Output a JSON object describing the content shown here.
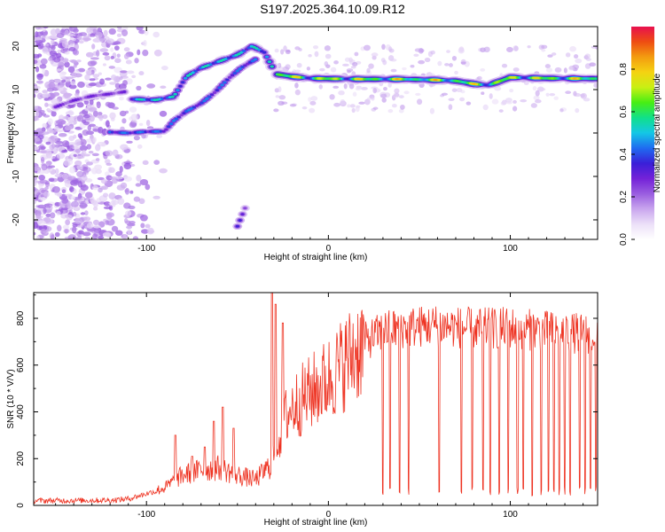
{
  "figure_title": "S197.2025.364.10.09.R12",
  "chart_data": [
    {
      "type": "heatmap",
      "name": "spectrogram",
      "xlabel": "Height of straight line (km)",
      "ylabel": "Frequency (Hz)",
      "xlim": [
        -162,
        148
      ],
      "ylim": [
        -24.5,
        24.5
      ],
      "xticks": [
        -100,
        0,
        100
      ],
      "yticks": [
        -20,
        -10,
        0,
        10,
        20
      ],
      "colorbar": {
        "label": "Normalized spectral amplitude",
        "range": [
          0,
          1
        ],
        "ticks": [
          0.0,
          0.2,
          0.4,
          0.6,
          0.8
        ],
        "tick_labels": [
          "0.0",
          "0.2",
          "0.4",
          "0.6",
          "0.8"
        ],
        "colormap": [
          "#ffffff",
          "#ece0f8",
          "#c9a6ee",
          "#9a5ee0",
          "#7422d8",
          "#3a1fd8",
          "#1f6bf0",
          "#14c7e6",
          "#10e08a",
          "#47ee14",
          "#c8f014",
          "#f5d212",
          "#f39c10",
          "#ee4d12",
          "#e8104e"
        ]
      },
      "ridges": [
        {
          "name": "main-tone",
          "points": [
            [
              -28,
              13.5
            ],
            [
              -20,
              13.0
            ],
            [
              -10,
              12.6
            ],
            [
              0,
              12.5
            ],
            [
              20,
              12.4
            ],
            [
              40,
              12.4
            ],
            [
              60,
              12.2
            ],
            [
              70,
              12.0
            ],
            [
              80,
              11.3
            ],
            [
              88,
              11.0
            ],
            [
              100,
              12.8
            ],
            [
              120,
              12.6
            ],
            [
              148,
              12.5
            ]
          ],
          "amplitude": 0.85
        },
        {
          "name": "left-tone-upper",
          "points": [
            [
              -108,
              7.8
            ],
            [
              -95,
              7.6
            ],
            [
              -85,
              8.4
            ],
            [
              -78,
              13.0
            ],
            [
              -70,
              15.0
            ],
            [
              -60,
              16.5
            ],
            [
              -50,
              18.0
            ],
            [
              -42,
              20.0
            ],
            [
              -35,
              18.5
            ],
            [
              -30,
              14.5
            ]
          ],
          "amplitude": 0.55
        },
        {
          "name": "left-tone-lower",
          "points": [
            [
              -120,
              0.2
            ],
            [
              -110,
              0.0
            ],
            [
              -100,
              0.3
            ],
            [
              -90,
              0.4
            ],
            [
              -85,
              2.8
            ],
            [
              -78,
              5.0
            ],
            [
              -70,
              6.8
            ],
            [
              -62,
              9.5
            ],
            [
              -55,
              12.5
            ],
            [
              -48,
              15.0
            ],
            [
              -40,
              17.0
            ]
          ],
          "amplitude": 0.45
        },
        {
          "name": "left-tone-middle",
          "points": [
            [
              -150,
              6.0
            ],
            [
              -140,
              7.5
            ],
            [
              -130,
              8.5
            ],
            [
              -120,
              9.0
            ],
            [
              -112,
              9.5
            ]
          ],
          "amplitude": 0.3
        },
        {
          "name": "isolated-blob",
          "points": [
            [
              -50,
              -21.5
            ],
            [
              -47,
              -18.5
            ],
            [
              -45,
              -16.5
            ]
          ],
          "amplitude": 0.35
        }
      ]
    },
    {
      "type": "line",
      "name": "snr",
      "xlabel": "Height of straight line (km)",
      "ylabel": "SNR (10 * V/V)",
      "xlim": [
        -162,
        148
      ],
      "ylim": [
        0,
        910
      ],
      "xticks": [
        -100,
        0,
        100
      ],
      "yticks": [
        0,
        200,
        400,
        600,
        800
      ],
      "color": "#ee3322",
      "series": [
        {
          "name": "SNR",
          "envelope": [
            [
              -162,
              20
            ],
            [
              -120,
              22
            ],
            [
              -110,
              28
            ],
            [
              -100,
              50
            ],
            [
              -90,
              75
            ],
            [
              -80,
              130
            ],
            [
              -70,
              150
            ],
            [
              -60,
              160
            ],
            [
              -50,
              130
            ],
            [
              -40,
              110
            ],
            [
              -32,
              170
            ],
            [
              -28,
              260
            ],
            [
              -24,
              370
            ],
            [
              -20,
              420
            ],
            [
              -10,
              480
            ],
            [
              0,
              540
            ],
            [
              10,
              620
            ],
            [
              20,
              700
            ],
            [
              30,
              745
            ],
            [
              40,
              760
            ],
            [
              50,
              765
            ],
            [
              60,
              770
            ],
            [
              80,
              755
            ],
            [
              100,
              760
            ],
            [
              120,
              745
            ],
            [
              148,
              730
            ]
          ]
        }
      ],
      "spikes": [
        [
          -84,
          300
        ],
        [
          -75,
          210
        ],
        [
          -68,
          250
        ],
        [
          -63,
          360
        ],
        [
          -58,
          420
        ],
        [
          -52,
          330
        ],
        [
          -31,
          910
        ],
        [
          -29,
          860
        ],
        [
          -25,
          780
        ]
      ],
      "dropouts_x": [
        30,
        34,
        39,
        44,
        61,
        73,
        79,
        85,
        89,
        94,
        99,
        104,
        107,
        112,
        117,
        121,
        124,
        127,
        130,
        133,
        138,
        141,
        144,
        147
      ]
    }
  ]
}
